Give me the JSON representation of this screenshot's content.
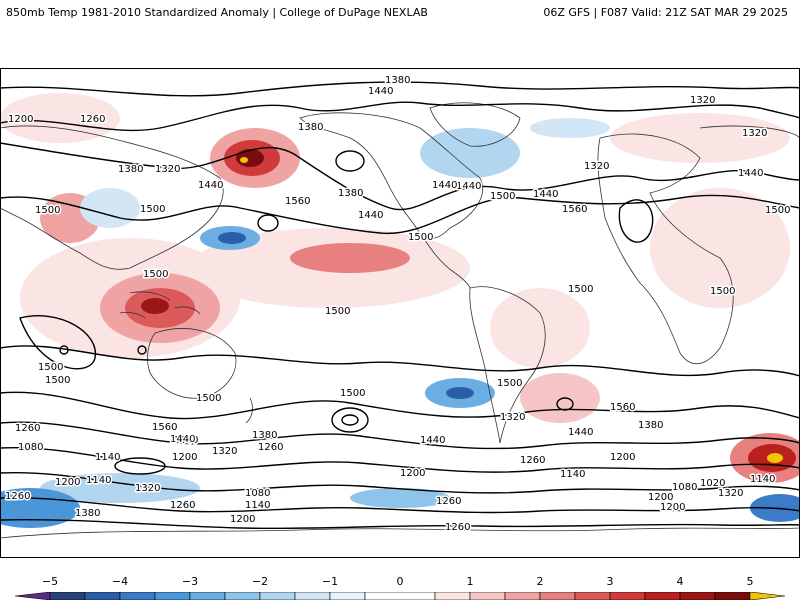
{
  "header": {
    "title": "850mb Temp 1981-2010 Standardized Anomaly | College of DuPage NEXLAB",
    "run_info": "06Z GFS | F087 Valid: 21Z SAT MAR 29 2025"
  },
  "map": {
    "contour_labels": [
      {
        "text": "1380"
      },
      {
        "text": "1440"
      },
      {
        "text": "1200"
      },
      {
        "text": "1260"
      },
      {
        "text": "1380"
      },
      {
        "text": "1320"
      },
      {
        "text": "1320"
      },
      {
        "text": "1380"
      },
      {
        "text": "1320"
      },
      {
        "text": "1440"
      },
      {
        "text": "1440"
      },
      {
        "text": "1440"
      },
      {
        "text": "1380"
      },
      {
        "text": "1560"
      },
      {
        "text": "1440"
      },
      {
        "text": "1500"
      },
      {
        "text": "1500"
      },
      {
        "text": "1560"
      },
      {
        "text": "1500"
      },
      {
        "text": "1500"
      },
      {
        "text": "1500"
      },
      {
        "text": "1500"
      },
      {
        "text": "1500"
      },
      {
        "text": "1500"
      },
      {
        "text": "1500"
      },
      {
        "text": "1500"
      },
      {
        "text": "1500"
      },
      {
        "text": "1500"
      },
      {
        "text": "1500"
      },
      {
        "text": "1500"
      },
      {
        "text": "1560"
      },
      {
        "text": "1380"
      },
      {
        "text": "1440"
      },
      {
        "text": "1440"
      },
      {
        "text": "1320"
      },
      {
        "text": "1260"
      },
      {
        "text": "1560"
      },
      {
        "text": "1440"
      },
      {
        "text": "1380"
      },
      {
        "text": "1320"
      },
      {
        "text": "1260"
      },
      {
        "text": "1080"
      },
      {
        "text": "1140"
      },
      {
        "text": "1200"
      },
      {
        "text": "1140"
      },
      {
        "text": "1200"
      },
      {
        "text": "1320"
      },
      {
        "text": "1260"
      },
      {
        "text": "1080"
      },
      {
        "text": "1140"
      },
      {
        "text": "1200"
      },
      {
        "text": "1260"
      },
      {
        "text": "1200"
      },
      {
        "text": "1140"
      },
      {
        "text": "1260"
      },
      {
        "text": "1200"
      },
      {
        "text": "1080"
      },
      {
        "text": "1020"
      },
      {
        "text": "1140"
      },
      {
        "text": "1320"
      },
      {
        "text": "1200"
      },
      {
        "text": "1260"
      },
      {
        "text": "1260"
      },
      {
        "text": "1440"
      },
      {
        "text": "1380"
      },
      {
        "text": "1200"
      },
      {
        "text": "1440"
      },
      {
        "text": "1440"
      },
      {
        "text": "1320"
      }
    ]
  },
  "colorbar": {
    "ticks": [
      {
        "label": "−5",
        "value": -5
      },
      {
        "label": "−4",
        "value": -4
      },
      {
        "label": "−3",
        "value": -3
      },
      {
        "label": "−2",
        "value": -2
      },
      {
        "label": "−1",
        "value": -1
      },
      {
        "label": "0",
        "value": 0
      },
      {
        "label": "1",
        "value": 1
      },
      {
        "label": "2",
        "value": 2
      },
      {
        "label": "3",
        "value": 3
      },
      {
        "label": "4",
        "value": 4
      },
      {
        "label": "5",
        "value": 5
      }
    ],
    "segments": [
      {
        "from": -5.5,
        "to": -5.0,
        "color": "#5b2a86"
      },
      {
        "from": -5.0,
        "to": -4.5,
        "color": "#273f7a"
      },
      {
        "from": -4.5,
        "to": -4.0,
        "color": "#2b5ea8"
      },
      {
        "from": -4.0,
        "to": -3.5,
        "color": "#3a7cc7"
      },
      {
        "from": -3.5,
        "to": -3.0,
        "color": "#4a96d9"
      },
      {
        "from": -3.0,
        "to": -2.5,
        "color": "#6aaee3"
      },
      {
        "from": -2.5,
        "to": -2.0,
        "color": "#8ec3ea"
      },
      {
        "from": -2.0,
        "to": -1.5,
        "color": "#b3d6f0"
      },
      {
        "from": -1.5,
        "to": -1.0,
        "color": "#d3e6f6"
      },
      {
        "from": -1.0,
        "to": -0.5,
        "color": "#eaf2fa"
      },
      {
        "from": -0.5,
        "to": 0.5,
        "color": "#ffffff"
      },
      {
        "from": 0.5,
        "to": 1.0,
        "color": "#fbe4e4"
      },
      {
        "from": 1.0,
        "to": 1.5,
        "color": "#f6c6c6"
      },
      {
        "from": 1.5,
        "to": 2.0,
        "color": "#f0a3a3"
      },
      {
        "from": 2.0,
        "to": 2.5,
        "color": "#e88080"
      },
      {
        "from": 2.5,
        "to": 3.0,
        "color": "#dc5a5a"
      },
      {
        "from": 3.0,
        "to": 3.5,
        "color": "#cf3b3b"
      },
      {
        "from": 3.5,
        "to": 4.0,
        "color": "#b92020"
      },
      {
        "from": 4.0,
        "to": 4.5,
        "color": "#9c1616"
      },
      {
        "from": 4.5,
        "to": 5.0,
        "color": "#7a0c0c"
      },
      {
        "from": 5.0,
        "to": 5.5,
        "color": "#f2c500"
      }
    ]
  }
}
